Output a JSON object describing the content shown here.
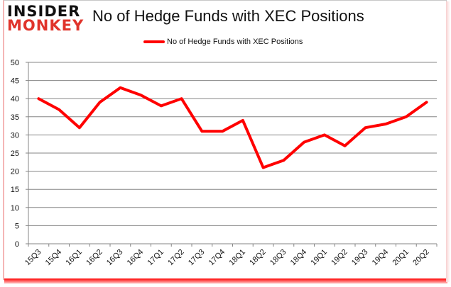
{
  "header": {
    "logo_line1": "INSIDER",
    "logo_line2": "MONKEY",
    "title": "No of Hedge Funds with XEC Positions"
  },
  "legend": {
    "label": "No of Hedge Funds with XEC Positions",
    "color": "#ff0000"
  },
  "chart_data": {
    "type": "line",
    "title": "No of Hedge Funds with XEC Positions",
    "xlabel": "",
    "ylabel": "",
    "categories": [
      "15Q3",
      "15Q4",
      "16Q1",
      "16Q2",
      "16Q3",
      "16Q4",
      "17Q1",
      "17Q2",
      "17Q3",
      "17Q4",
      "18Q1",
      "18Q2",
      "18Q3",
      "18Q4",
      "19Q1",
      "19Q2",
      "19Q3",
      "19Q4",
      "20Q1",
      "20Q2"
    ],
    "series": [
      {
        "name": "No of Hedge Funds with XEC Positions",
        "color": "#ff0000",
        "values": [
          40,
          37,
          32,
          39,
          43,
          41,
          38,
          40,
          31,
          31,
          34,
          21,
          23,
          28,
          30,
          27,
          32,
          33,
          35,
          39
        ]
      }
    ],
    "ylim": [
      0,
      50
    ],
    "yticks": [
      0,
      5,
      10,
      15,
      20,
      25,
      30,
      35,
      40,
      45,
      50
    ],
    "grid": true,
    "legend_position": "top"
  }
}
